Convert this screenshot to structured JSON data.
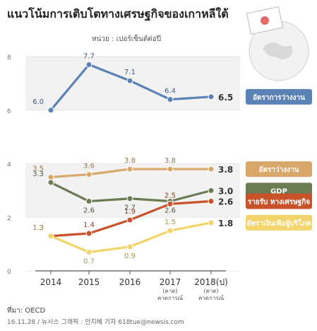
{
  "title": "แนวโน้มการเติบโตทางเศรษฐกิจของเกาหลีใต้",
  "unit": "หน่วย : เปอร์เซ็นต์ต่อปี",
  "source": "ที่มา: OECD",
  "credit": "16.11.28 / 뉴시스 그래픽 : 안지혜 기자 618tue@newsis.com",
  "chart_data": {
    "type": "line",
    "x": [
      "2014",
      "2015",
      "2016",
      "2017",
      "2018"
    ],
    "x_sub": [
      "",
      "",
      "",
      "(คาด)",
      "(คาด)"
    ],
    "x_sub2": [
      "",
      "",
      "",
      "คาดการณ์",
      "คาดการณ์"
    ],
    "x_suffix": [
      "",
      "",
      "",
      "",
      "(ป)"
    ],
    "ylim": [
      0,
      8
    ],
    "yticks": [
      0,
      2,
      4,
      6,
      8
    ],
    "ytick_labels": [
      "0",
      "2",
      "4",
      "6",
      "8"
    ],
    "series": [
      {
        "name": "อัตราการว่างงาน",
        "color": "#5b82b5",
        "labelbox": "#5b82b5",
        "values": [
          6.0,
          7.7,
          7.1,
          6.4,
          6.5
        ],
        "labels": [
          "6.0",
          "7.7",
          "7.1",
          "6.4",
          "6.5"
        ]
      },
      {
        "name": "อัตราว่างงาน",
        "color": "#d8a86b",
        "labelbox": "#d8a86b",
        "values": [
          3.5,
          3.6,
          3.8,
          3.8,
          3.8
        ],
        "labels": [
          "3.5",
          "3.6",
          "3.8",
          "3.8",
          "3.8"
        ]
      },
      {
        "name": "GDP",
        "color": "#6b7b52",
        "labelbox": "#6b7b52",
        "values": [
          3.3,
          2.6,
          2.7,
          2.6,
          3.0
        ],
        "labels": [
          "3.3",
          "2.6",
          "2.7",
          "2.6",
          "3.0"
        ]
      },
      {
        "name": "รายรับ ทางเศรษฐกิจ",
        "color": "#c8532b",
        "labelbox": "#c8532b",
        "values": [
          1.3,
          1.4,
          1.9,
          2.5,
          2.6
        ],
        "labels": [
          "1.3",
          "1.4",
          "1.9",
          "2.5",
          "2.6"
        ]
      },
      {
        "name": "อัตราเงินเฟ้อผู้บริโภค",
        "color": "#f2d46a",
        "labelbox": "#f2d46a",
        "values": [
          1.3,
          0.7,
          0.9,
          1.5,
          1.8
        ],
        "labels": [
          "1.3",
          "0.7",
          "0.9",
          "1.5",
          "1.8"
        ]
      }
    ]
  }
}
